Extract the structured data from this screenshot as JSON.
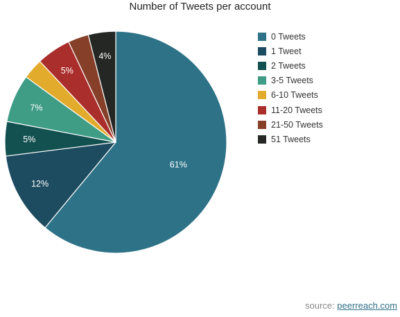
{
  "chart_data": {
    "type": "pie",
    "title": "Number of Tweets per account",
    "slices": [
      {
        "label": "0 Tweets",
        "value": 61,
        "display": "61%",
        "color": "#2e7288"
      },
      {
        "label": "1 Tweet",
        "value": 12,
        "display": "12%",
        "color": "#1d4b60"
      },
      {
        "label": "2 Tweets",
        "value": 5,
        "display": "5%",
        "color": "#125150"
      },
      {
        "label": "3-5 Tweets",
        "value": 7,
        "display": "7%",
        "color": "#3f9c85"
      },
      {
        "label": "6-10 Tweets",
        "value": 3,
        "display": "",
        "color": "#e3ab2c"
      },
      {
        "label": "11-20 Tweets",
        "value": 5,
        "display": "5%",
        "color": "#aa2e2b"
      },
      {
        "label": "21-50 Tweets",
        "value": 3,
        "display": "",
        "color": "#86402a"
      },
      {
        "label": "51 Tweets",
        "value": 4,
        "display": "4%",
        "color": "#252725"
      }
    ],
    "start": "top",
    "direction": "clockwise",
    "legend": "right"
  },
  "source": {
    "prefix": "source:",
    "link_text": "peerreach.com"
  }
}
